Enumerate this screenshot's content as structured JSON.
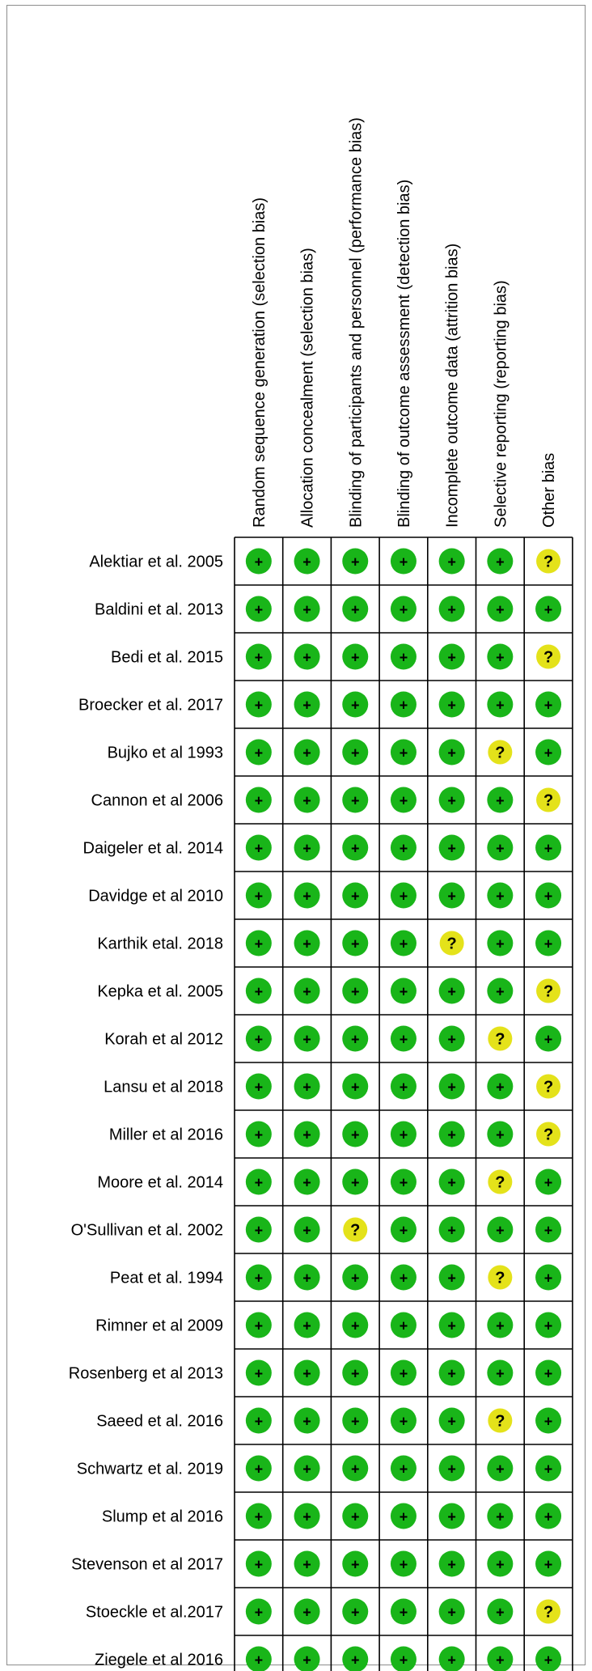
{
  "domains": [
    "Random sequence generation (selection bias)",
    "Allocation concealment (selection bias)",
    "Blinding of participants and personnel (performance bias)",
    "Blinding of outcome assessment (detection bias)",
    "Incomplete outcome data (attrition bias)",
    "Selective reporting (reporting bias)",
    "Other bias"
  ],
  "studies": [
    {
      "name": "Alektiar et al. 2005",
      "ratings": [
        "+",
        "+",
        "+",
        "+",
        "+",
        "+",
        "?"
      ]
    },
    {
      "name": "Baldini et al. 2013",
      "ratings": [
        "+",
        "+",
        "+",
        "+",
        "+",
        "+",
        "+"
      ]
    },
    {
      "name": "Bedi et al. 2015",
      "ratings": [
        "+",
        "+",
        "+",
        "+",
        "+",
        "+",
        "?"
      ]
    },
    {
      "name": "Broecker et al. 2017",
      "ratings": [
        "+",
        "+",
        "+",
        "+",
        "+",
        "+",
        "+"
      ]
    },
    {
      "name": "Bujko et al 1993",
      "ratings": [
        "+",
        "+",
        "+",
        "+",
        "+",
        "?",
        "+"
      ]
    },
    {
      "name": "Cannon et al 2006",
      "ratings": [
        "+",
        "+",
        "+",
        "+",
        "+",
        "+",
        "?"
      ]
    },
    {
      "name": "Daigeler et al. 2014",
      "ratings": [
        "+",
        "+",
        "+",
        "+",
        "+",
        "+",
        "+"
      ]
    },
    {
      "name": "Davidge et al 2010",
      "ratings": [
        "+",
        "+",
        "+",
        "+",
        "+",
        "+",
        "+"
      ]
    },
    {
      "name": "Karthik etal. 2018",
      "ratings": [
        "+",
        "+",
        "+",
        "+",
        "?",
        "+",
        "+"
      ]
    },
    {
      "name": "Kepka et al. 2005",
      "ratings": [
        "+",
        "+",
        "+",
        "+",
        "+",
        "+",
        "?"
      ]
    },
    {
      "name": "Korah et al 2012",
      "ratings": [
        "+",
        "+",
        "+",
        "+",
        "+",
        "?",
        "+"
      ]
    },
    {
      "name": "Lansu et al 2018",
      "ratings": [
        "+",
        "+",
        "+",
        "+",
        "+",
        "+",
        "?"
      ]
    },
    {
      "name": "Miller et al 2016",
      "ratings": [
        "+",
        "+",
        "+",
        "+",
        "+",
        "+",
        "?"
      ]
    },
    {
      "name": "Moore et al. 2014",
      "ratings": [
        "+",
        "+",
        "+",
        "+",
        "+",
        "?",
        "+"
      ]
    },
    {
      "name": "O'Sullivan et al. 2002",
      "ratings": [
        "+",
        "+",
        "?",
        "+",
        "+",
        "+",
        "+"
      ]
    },
    {
      "name": "Peat  et al. 1994",
      "ratings": [
        "+",
        "+",
        "+",
        "+",
        "+",
        "?",
        "+"
      ]
    },
    {
      "name": "Rimner et al 2009",
      "ratings": [
        "+",
        "+",
        "+",
        "+",
        "+",
        "+",
        "+"
      ]
    },
    {
      "name": "Rosenberg et al 2013",
      "ratings": [
        "+",
        "+",
        "+",
        "+",
        "+",
        "+",
        "+"
      ]
    },
    {
      "name": "Saeed et al. 2016",
      "ratings": [
        "+",
        "+",
        "+",
        "+",
        "+",
        "?",
        "+"
      ]
    },
    {
      "name": "Schwartz et al. 2019",
      "ratings": [
        "+",
        "+",
        "+",
        "+",
        "+",
        "+",
        "+"
      ]
    },
    {
      "name": "Slump et al 2016",
      "ratings": [
        "+",
        "+",
        "+",
        "+",
        "+",
        "+",
        "+"
      ]
    },
    {
      "name": "Stevenson et al 2017",
      "ratings": [
        "+",
        "+",
        "+",
        "+",
        "+",
        "+",
        "+"
      ]
    },
    {
      "name": "Stoeckle et al.2017",
      "ratings": [
        "+",
        "+",
        "+",
        "+",
        "+",
        "+",
        "?"
      ]
    },
    {
      "name": "Ziegele et al 2016",
      "ratings": [
        "+",
        "+",
        "+",
        "+",
        "+",
        "+",
        "+"
      ]
    }
  ],
  "colors": {
    "low_risk": "#19b519",
    "unclear_risk": "#e4e21a",
    "frame": "#8c8c8c"
  },
  "icons": {
    "+": "low-risk-icon",
    "?": "unclear-risk-icon"
  }
}
